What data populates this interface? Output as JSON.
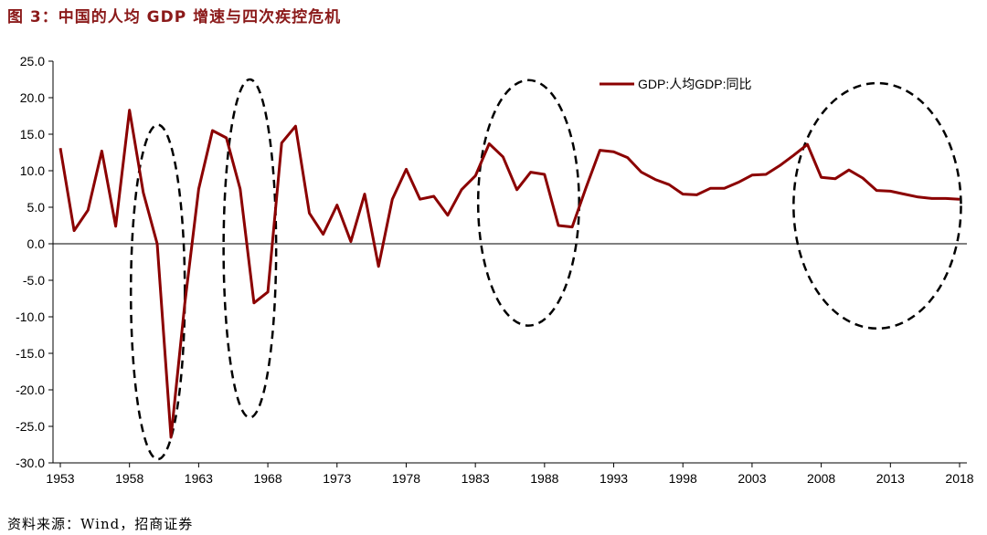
{
  "figure": {
    "title": "图 3：中国的人均 GDP 增速与四次疾控危机",
    "source": "资料来源：Wind，招商证券"
  },
  "colors": {
    "series": "#8b0000",
    "axis": "#000000",
    "ellipse": "#000000"
  },
  "chart_data": {
    "type": "line",
    "title": "",
    "xlabel": "",
    "ylabel": "",
    "ylim": [
      -30,
      25
    ],
    "xlim": [
      1953,
      2018
    ],
    "grid": false,
    "legend_position": "top-right",
    "y_ticks": [
      "25.0",
      "20.0",
      "15.0",
      "10.0",
      "5.0",
      "0.0",
      "-5.0",
      "-10.0",
      "-15.0",
      "-20.0",
      "-25.0",
      "-30.0"
    ],
    "y_tick_values": [
      25,
      20,
      15,
      10,
      5,
      0,
      -5,
      -10,
      -15,
      -20,
      -25,
      -30
    ],
    "x_ticks": [
      "1953",
      "1958",
      "1963",
      "1968",
      "1973",
      "1978",
      "1983",
      "1988",
      "1993",
      "1998",
      "2003",
      "2008",
      "2013",
      "2018"
    ],
    "x_tick_values": [
      1953,
      1958,
      1963,
      1968,
      1973,
      1978,
      1983,
      1988,
      1993,
      1998,
      2003,
      2008,
      2013,
      2018
    ],
    "series": [
      {
        "name": "GDP:人均GDP:同比",
        "x": [
          1953,
          1954,
          1955,
          1956,
          1957,
          1958,
          1959,
          1960,
          1961,
          1962,
          1963,
          1964,
          1965,
          1966,
          1967,
          1968,
          1969,
          1970,
          1971,
          1972,
          1973,
          1974,
          1975,
          1976,
          1977,
          1978,
          1979,
          1980,
          1981,
          1982,
          1983,
          1984,
          1985,
          1986,
          1987,
          1988,
          1989,
          1990,
          1991,
          1992,
          1993,
          1994,
          1995,
          1996,
          1997,
          1998,
          1999,
          2000,
          2001,
          2002,
          2003,
          2004,
          2005,
          2006,
          2007,
          2008,
          2009,
          2010,
          2011,
          2012,
          2013,
          2014,
          2015,
          2016,
          2017,
          2018
        ],
        "values": [
          13.1,
          1.8,
          4.6,
          12.7,
          2.4,
          18.3,
          7.0,
          0.0,
          -26.5,
          -8.2,
          7.5,
          15.5,
          14.5,
          7.5,
          -8.1,
          -6.6,
          13.8,
          16.1,
          4.2,
          1.3,
          5.3,
          0.3,
          6.8,
          -3.1,
          6.1,
          10.2,
          6.1,
          6.5,
          3.9,
          7.4,
          9.3,
          13.7,
          11.9,
          7.4,
          9.8,
          9.5,
          2.5,
          2.3,
          7.7,
          12.8,
          12.6,
          11.8,
          9.8,
          8.8,
          8.1,
          6.8,
          6.7,
          7.6,
          7.6,
          8.4,
          9.4,
          9.5,
          10.7,
          12.1,
          13.6,
          9.1,
          8.9,
          10.1,
          9.0,
          7.3,
          7.2,
          6.8,
          6.4,
          6.2,
          6.2,
          6.1
        ]
      }
    ],
    "annotations": [
      {
        "type": "dashed-ellipse",
        "x_range": [
          1958.1,
          1962.0
        ],
        "y_range": [
          -29.5,
          16.3
        ]
      },
      {
        "type": "dashed-ellipse",
        "x_range": [
          1964.8,
          1968.6
        ],
        "y_range": [
          -23.8,
          22.5
        ]
      },
      {
        "type": "dashed-ellipse",
        "x_range": [
          1983.2,
          1990.5
        ],
        "y_range": [
          -11.2,
          22.4
        ]
      },
      {
        "type": "dashed-ellipse",
        "x_range": [
          2006.0,
          2018.1
        ],
        "y_range": [
          -11.6,
          22.0
        ]
      }
    ]
  }
}
